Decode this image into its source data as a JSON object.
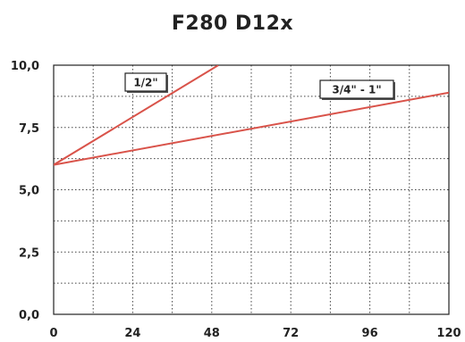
{
  "chart_data": {
    "type": "line",
    "title": "F280 D12x",
    "xlabel": "",
    "ylabel": "",
    "xlim": [
      0,
      120
    ],
    "ylim": [
      0,
      10
    ],
    "x_ticks": [
      0,
      24,
      48,
      72,
      96,
      120
    ],
    "x_tick_labels": [
      "0",
      "24",
      "48",
      "72",
      "96",
      "120"
    ],
    "y_ticks": [
      0,
      2.5,
      5,
      7.5,
      10
    ],
    "y_tick_labels": [
      "0,0",
      "2,5",
      "5,0",
      "7,5",
      "10,0"
    ],
    "grid": true,
    "grid_style": "dotted",
    "series": [
      {
        "name": "1/2\"",
        "color": "#d9534a",
        "points": [
          [
            0,
            6.0
          ],
          [
            50,
            10.0
          ]
        ]
      },
      {
        "name": "3/4\" - 1\"",
        "color": "#d9534a",
        "points": [
          [
            0,
            6.0
          ],
          [
            120,
            8.9
          ]
        ]
      }
    ]
  }
}
